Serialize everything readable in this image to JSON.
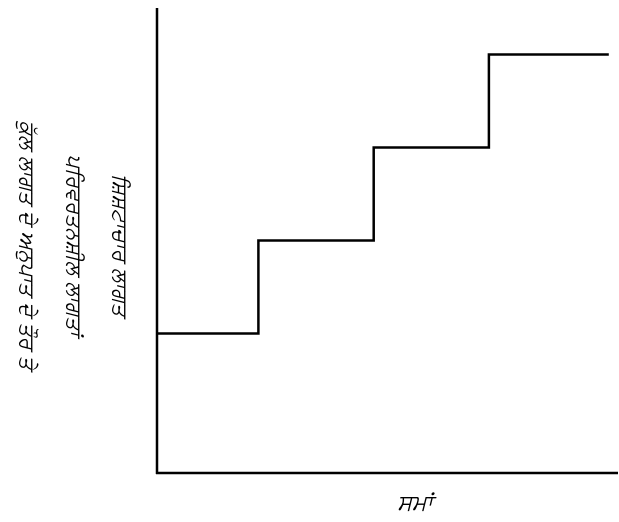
{
  "chart_data": {
    "type": "line",
    "step": true,
    "title": "",
    "xlabel": "ਸਮਾਂ",
    "ylabel_lines": [
      "ਕੁੱਲ ਲਾਗਤ ਦੇ ਅਨੁਪਾਤ ਦੇ ਤੌਰ ਤੇ",
      "ਪਰਿਵਰਤਨਸ਼ੀਲ ਲਾਗਤਾਂ",
      "ਸ਼ਿਸ਼ਟਾਚਾਰ ਲਾਗਤ"
    ],
    "x_ticks": [],
    "y_ticks": [],
    "grid": false,
    "legend": "none",
    "xlim": [
      0,
      10
    ],
    "ylim": [
      0,
      10
    ],
    "series": [
      {
        "x": [
          0,
          2.2,
          2.2,
          4.7,
          4.7,
          7.2,
          7.2,
          9.8
        ],
        "y": [
          3.0,
          3.0,
          5.0,
          5.0,
          7.0,
          7.0,
          9.0,
          9.0
        ]
      }
    ],
    "colors": {
      "line": "#000000",
      "axis": "#000000",
      "background": "#ffffff"
    }
  }
}
